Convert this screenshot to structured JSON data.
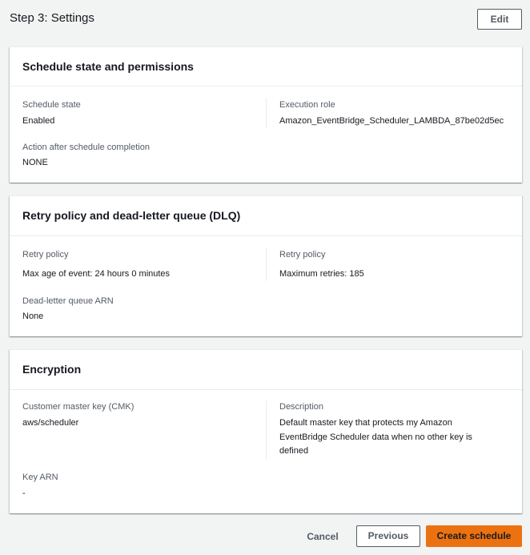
{
  "header": {
    "title": "Step 3: Settings",
    "edit": "Edit"
  },
  "panels": [
    {
      "title": "Schedule state and permissions",
      "fields": [
        {
          "label": "Schedule state",
          "value": "Enabled"
        },
        {
          "label": "Execution role",
          "value": "Amazon_EventBridge_Scheduler_LAMBDA_87be02d5ec"
        },
        {
          "label": "Action after schedule completion",
          "value": "NONE"
        }
      ]
    },
    {
      "title": "Retry policy and dead-letter queue (DLQ)",
      "fields": [
        {
          "label": "Retry policy",
          "value": "Max age of event: 24 hours 0 minutes"
        },
        {
          "label": "Retry policy",
          "value": "Maximum retries: 185"
        },
        {
          "label": "Dead-letter queue ARN",
          "value": "None"
        }
      ]
    },
    {
      "title": "Encryption",
      "fields": [
        {
          "label": "Customer master key (CMK)",
          "value": "aws/scheduler"
        },
        {
          "label": "Description",
          "value": "Default master key that protects my Amazon EventBridge Scheduler data when no other key is defined"
        },
        {
          "label": "Key ARN",
          "value": "-"
        }
      ]
    }
  ],
  "footer": {
    "cancel": "Cancel",
    "previous": "Previous",
    "create": "Create schedule"
  }
}
